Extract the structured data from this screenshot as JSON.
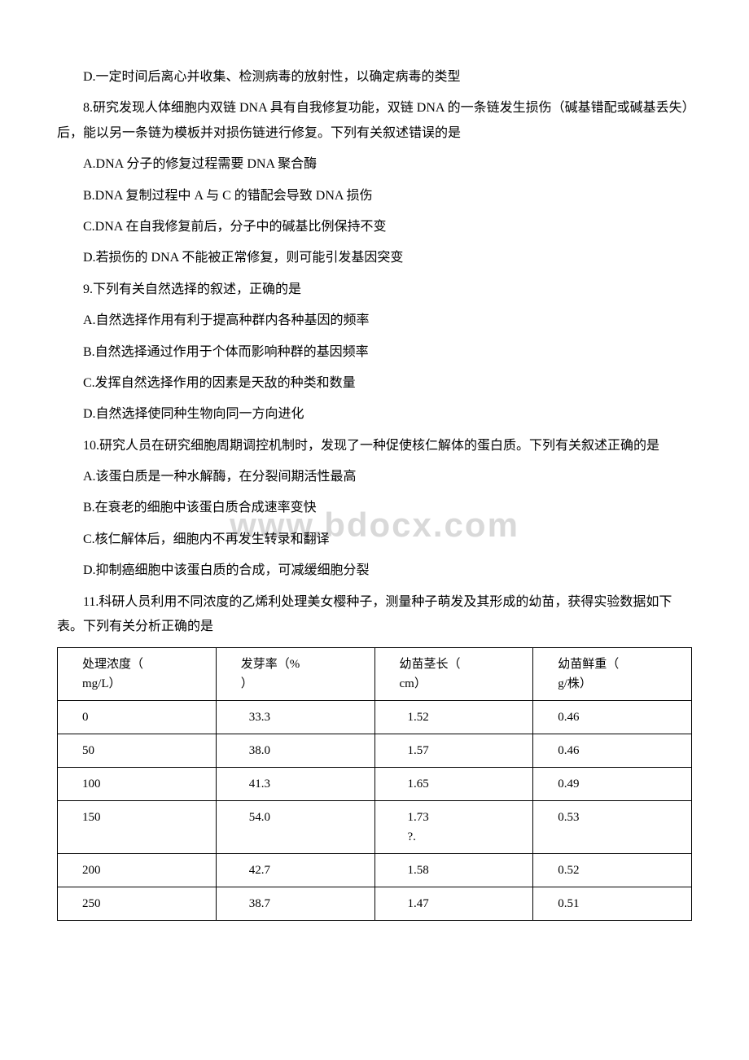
{
  "watermark": "www.bdocx.com",
  "paragraphs": {
    "p7d": "D.一定时间后离心并收集、检测病毒的放射性，以确定病毒的类型",
    "q8": "8.研究发现人体细胞内双链 DNA 具有自我修复功能，双链 DNA 的一条链发生损伤（碱基错配或碱基丢失）后，能以另一条链为模板并对损伤链进行修复。下列有关叙述错误的是",
    "q8a": "A.DNA 分子的修复过程需要 DNA 聚合酶",
    "q8b": "B.DNA 复制过程中 A 与 C 的错配会导致 DNA 损伤",
    "q8c": "C.DNA 在自我修复前后，分子中的碱基比例保持不变",
    "q8d": "D.若损伤的 DNA 不能被正常修复，则可能引发基因突变",
    "q9": "9.下列有关自然选择的叙述，正确的是",
    "q9a": "A.自然选择作用有利于提高种群内各种基因的频率",
    "q9b": "B.自然选择通过作用于个体而影响种群的基因频率",
    "q9c": "C.发挥自然选择作用的因素是天敌的种类和数量",
    "q9d": "D.自然选择使同种生物向同一方向进化",
    "q10": "10.研究人员在研究细胞周期调控机制时，发现了一种促使核仁解体的蛋白质。下列有关叙述正确的是",
    "q10a": "A.该蛋白质是一种水解酶，在分裂间期活性最高",
    "q10b": "B.在衰老的细胞中该蛋白质合成速率变快",
    "q10c": "C.核仁解体后，细胞内不再发生转录和翻译",
    "q10d": "D.抑制癌细胞中该蛋白质的合成，可减缓细胞分裂",
    "q11": "11.科研人员利用不同浓度的乙烯利处理美女樱种子，测量种子萌发及其形成的幼苗，获得实验数据如下表。下列有关分析正确的是"
  },
  "table": {
    "headers": {
      "h1a": "处理浓度（",
      "h1b": "mg/L）",
      "h2a": "发芽率（%",
      "h2b": "）",
      "h3a": "幼苗茎长（",
      "h3b": "cm）",
      "h4a": "幼苗鲜重（",
      "h4b": "g/株）"
    },
    "rows": [
      {
        "c1": "0",
        "c2": "33.3",
        "c3": "1.52",
        "c4": "0.46"
      },
      {
        "c1": "50",
        "c2": "38.0",
        "c3": "1.57",
        "c4": "0.46"
      },
      {
        "c1": "100",
        "c2": "41.3",
        "c3": "1.65",
        "c4": "0.49"
      },
      {
        "c1": "150",
        "c2": "54.0",
        "c3a": "1.73",
        "c3b": "?.",
        "c4": "0.53"
      },
      {
        "c1": "200",
        "c2": "42.7",
        "c3": "1.58",
        "c4": "0.52"
      },
      {
        "c1": "250",
        "c2": "38.7",
        "c3": "1.47",
        "c4": "0.51"
      }
    ]
  },
  "style": {
    "text_color": "#000000",
    "background": "#ffffff",
    "watermark_color": "#d9d9d9",
    "border_color": "#000000",
    "font_size_pt": 12,
    "watermark_font_size_pt": 32
  }
}
